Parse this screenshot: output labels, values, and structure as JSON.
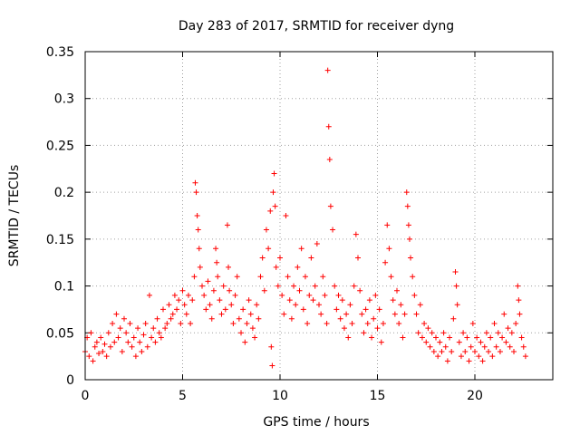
{
  "chart_data": {
    "type": "scatter",
    "title": "Day 283 of 2017, SRMTID for receiver dyng",
    "xlabel": "GPS time / hours",
    "ylabel": "SRMTID / TECUs",
    "xlim": [
      0,
      24
    ],
    "ylim": [
      0,
      0.35
    ],
    "xticks": [
      0,
      5,
      10,
      15,
      20
    ],
    "xtick_labels": [
      "0",
      "5",
      "10",
      "15",
      "20"
    ],
    "yticks": [
      0,
      0.05,
      0.1,
      0.15,
      0.2,
      0.25,
      0.3,
      0.35
    ],
    "ytick_labels": [
      "0",
      "0.05",
      "0.1",
      "0.15",
      "0.2",
      "0.25",
      "0.3",
      "0.35"
    ],
    "grid": true,
    "marker": "+",
    "series": [
      {
        "name": "SRMTID",
        "color": "#ff0000",
        "points": [
          [
            0.0,
            0.03
          ],
          [
            0.1,
            0.045
          ],
          [
            0.2,
            0.025
          ],
          [
            0.3,
            0.05
          ],
          [
            0.4,
            0.02
          ],
          [
            0.5,
            0.035
          ],
          [
            0.6,
            0.04
          ],
          [
            0.7,
            0.028
          ],
          [
            0.8,
            0.045
          ],
          [
            0.9,
            0.03
          ],
          [
            1.0,
            0.038
          ],
          [
            1.1,
            0.025
          ],
          [
            1.2,
            0.05
          ],
          [
            1.3,
            0.035
          ],
          [
            1.4,
            0.06
          ],
          [
            1.5,
            0.04
          ],
          [
            1.6,
            0.07
          ],
          [
            1.7,
            0.045
          ],
          [
            1.8,
            0.055
          ],
          [
            1.9,
            0.03
          ],
          [
            2.0,
            0.065
          ],
          [
            2.1,
            0.05
          ],
          [
            2.2,
            0.04
          ],
          [
            2.3,
            0.06
          ],
          [
            2.4,
            0.035
          ],
          [
            2.5,
            0.045
          ],
          [
            2.6,
            0.025
          ],
          [
            2.7,
            0.055
          ],
          [
            2.8,
            0.04
          ],
          [
            2.9,
            0.03
          ],
          [
            3.0,
            0.048
          ],
          [
            3.1,
            0.06
          ],
          [
            3.2,
            0.035
          ],
          [
            3.3,
            0.09
          ],
          [
            3.4,
            0.045
          ],
          [
            3.5,
            0.055
          ],
          [
            3.6,
            0.04
          ],
          [
            3.7,
            0.065
          ],
          [
            3.8,
            0.05
          ],
          [
            3.9,
            0.045
          ],
          [
            4.0,
            0.075
          ],
          [
            4.1,
            0.055
          ],
          [
            4.2,
            0.06
          ],
          [
            4.3,
            0.08
          ],
          [
            4.4,
            0.065
          ],
          [
            4.5,
            0.07
          ],
          [
            4.6,
            0.09
          ],
          [
            4.7,
            0.075
          ],
          [
            4.8,
            0.085
          ],
          [
            4.9,
            0.06
          ],
          [
            5.0,
            0.095
          ],
          [
            5.1,
            0.08
          ],
          [
            5.2,
            0.07
          ],
          [
            5.3,
            0.09
          ],
          [
            5.4,
            0.06
          ],
          [
            5.5,
            0.085
          ],
          [
            5.6,
            0.11
          ],
          [
            5.65,
            0.21
          ],
          [
            5.7,
            0.2
          ],
          [
            5.75,
            0.175
          ],
          [
            5.8,
            0.16
          ],
          [
            5.85,
            0.14
          ],
          [
            5.9,
            0.12
          ],
          [
            6.0,
            0.1
          ],
          [
            6.1,
            0.09
          ],
          [
            6.2,
            0.075
          ],
          [
            6.3,
            0.105
          ],
          [
            6.4,
            0.08
          ],
          [
            6.5,
            0.065
          ],
          [
            6.6,
            0.095
          ],
          [
            6.7,
            0.14
          ],
          [
            6.75,
            0.125
          ],
          [
            6.8,
            0.11
          ],
          [
            6.9,
            0.085
          ],
          [
            7.0,
            0.07
          ],
          [
            7.1,
            0.1
          ],
          [
            7.2,
            0.075
          ],
          [
            7.3,
            0.165
          ],
          [
            7.35,
            0.12
          ],
          [
            7.4,
            0.095
          ],
          [
            7.5,
            0.08
          ],
          [
            7.6,
            0.06
          ],
          [
            7.7,
            0.09
          ],
          [
            7.8,
            0.11
          ],
          [
            7.9,
            0.065
          ],
          [
            8.0,
            0.05
          ],
          [
            8.1,
            0.075
          ],
          [
            8.2,
            0.04
          ],
          [
            8.3,
            0.06
          ],
          [
            8.4,
            0.085
          ],
          [
            8.5,
            0.07
          ],
          [
            8.6,
            0.055
          ],
          [
            8.7,
            0.045
          ],
          [
            8.8,
            0.08
          ],
          [
            8.9,
            0.065
          ],
          [
            9.0,
            0.11
          ],
          [
            9.1,
            0.13
          ],
          [
            9.2,
            0.095
          ],
          [
            9.3,
            0.16
          ],
          [
            9.4,
            0.14
          ],
          [
            9.5,
            0.18
          ],
          [
            9.55,
            0.035
          ],
          [
            9.6,
            0.015
          ],
          [
            9.65,
            0.2
          ],
          [
            9.7,
            0.22
          ],
          [
            9.75,
            0.185
          ],
          [
            9.8,
            0.12
          ],
          [
            9.9,
            0.1
          ],
          [
            10.0,
            0.13
          ],
          [
            10.1,
            0.09
          ],
          [
            10.2,
            0.07
          ],
          [
            10.3,
            0.175
          ],
          [
            10.4,
            0.11
          ],
          [
            10.5,
            0.085
          ],
          [
            10.6,
            0.065
          ],
          [
            10.7,
            0.1
          ],
          [
            10.8,
            0.08
          ],
          [
            10.9,
            0.12
          ],
          [
            11.0,
            0.095
          ],
          [
            11.1,
            0.14
          ],
          [
            11.2,
            0.075
          ],
          [
            11.3,
            0.11
          ],
          [
            11.4,
            0.06
          ],
          [
            11.5,
            0.09
          ],
          [
            11.6,
            0.13
          ],
          [
            11.7,
            0.085
          ],
          [
            11.8,
            0.1
          ],
          [
            11.9,
            0.145
          ],
          [
            12.0,
            0.08
          ],
          [
            12.1,
            0.07
          ],
          [
            12.2,
            0.11
          ],
          [
            12.3,
            0.09
          ],
          [
            12.4,
            0.06
          ],
          [
            12.45,
            0.33
          ],
          [
            12.5,
            0.27
          ],
          [
            12.55,
            0.235
          ],
          [
            12.6,
            0.185
          ],
          [
            12.7,
            0.16
          ],
          [
            12.8,
            0.1
          ],
          [
            12.9,
            0.075
          ],
          [
            13.0,
            0.09
          ],
          [
            13.1,
            0.065
          ],
          [
            13.2,
            0.085
          ],
          [
            13.3,
            0.055
          ],
          [
            13.4,
            0.07
          ],
          [
            13.5,
            0.045
          ],
          [
            13.6,
            0.08
          ],
          [
            13.7,
            0.06
          ],
          [
            13.8,
            0.1
          ],
          [
            13.9,
            0.155
          ],
          [
            14.0,
            0.13
          ],
          [
            14.1,
            0.095
          ],
          [
            14.2,
            0.07
          ],
          [
            14.3,
            0.05
          ],
          [
            14.4,
            0.075
          ],
          [
            14.5,
            0.06
          ],
          [
            14.6,
            0.085
          ],
          [
            14.7,
            0.045
          ],
          [
            14.8,
            0.065
          ],
          [
            14.9,
            0.09
          ],
          [
            15.0,
            0.055
          ],
          [
            15.1,
            0.075
          ],
          [
            15.2,
            0.04
          ],
          [
            15.3,
            0.06
          ],
          [
            15.4,
            0.125
          ],
          [
            15.5,
            0.165
          ],
          [
            15.6,
            0.14
          ],
          [
            15.7,
            0.11
          ],
          [
            15.8,
            0.085
          ],
          [
            15.9,
            0.07
          ],
          [
            16.0,
            0.095
          ],
          [
            16.1,
            0.06
          ],
          [
            16.2,
            0.08
          ],
          [
            16.3,
            0.045
          ],
          [
            16.4,
            0.07
          ],
          [
            16.5,
            0.2
          ],
          [
            16.55,
            0.185
          ],
          [
            16.6,
            0.165
          ],
          [
            16.65,
            0.15
          ],
          [
            16.7,
            0.13
          ],
          [
            16.8,
            0.11
          ],
          [
            16.9,
            0.09
          ],
          [
            17.0,
            0.07
          ],
          [
            17.1,
            0.05
          ],
          [
            17.2,
            0.08
          ],
          [
            17.3,
            0.045
          ],
          [
            17.4,
            0.06
          ],
          [
            17.5,
            0.04
          ],
          [
            17.6,
            0.055
          ],
          [
            17.7,
            0.035
          ],
          [
            17.8,
            0.05
          ],
          [
            17.9,
            0.03
          ],
          [
            18.0,
            0.045
          ],
          [
            18.1,
            0.025
          ],
          [
            18.2,
            0.04
          ],
          [
            18.3,
            0.03
          ],
          [
            18.4,
            0.05
          ],
          [
            18.5,
            0.035
          ],
          [
            18.6,
            0.02
          ],
          [
            18.7,
            0.045
          ],
          [
            18.8,
            0.03
          ],
          [
            18.9,
            0.065
          ],
          [
            19.0,
            0.115
          ],
          [
            19.05,
            0.1
          ],
          [
            19.1,
            0.08
          ],
          [
            19.2,
            0.04
          ],
          [
            19.3,
            0.025
          ],
          [
            19.4,
            0.05
          ],
          [
            19.5,
            0.03
          ],
          [
            19.6,
            0.045
          ],
          [
            19.7,
            0.02
          ],
          [
            19.8,
            0.035
          ],
          [
            19.9,
            0.06
          ],
          [
            20.0,
            0.03
          ],
          [
            20.1,
            0.045
          ],
          [
            20.2,
            0.025
          ],
          [
            20.3,
            0.04
          ],
          [
            20.4,
            0.02
          ],
          [
            20.5,
            0.035
          ],
          [
            20.6,
            0.05
          ],
          [
            20.7,
            0.03
          ],
          [
            20.8,
            0.045
          ],
          [
            20.9,
            0.025
          ],
          [
            21.0,
            0.06
          ],
          [
            21.1,
            0.035
          ],
          [
            21.2,
            0.05
          ],
          [
            21.3,
            0.03
          ],
          [
            21.4,
            0.045
          ],
          [
            21.5,
            0.07
          ],
          [
            21.6,
            0.04
          ],
          [
            21.7,
            0.055
          ],
          [
            21.8,
            0.035
          ],
          [
            21.9,
            0.05
          ],
          [
            22.0,
            0.03
          ],
          [
            22.1,
            0.06
          ],
          [
            22.2,
            0.1
          ],
          [
            22.25,
            0.085
          ],
          [
            22.3,
            0.07
          ],
          [
            22.4,
            0.045
          ],
          [
            22.5,
            0.035
          ],
          [
            22.6,
            0.025
          ]
        ]
      }
    ]
  }
}
